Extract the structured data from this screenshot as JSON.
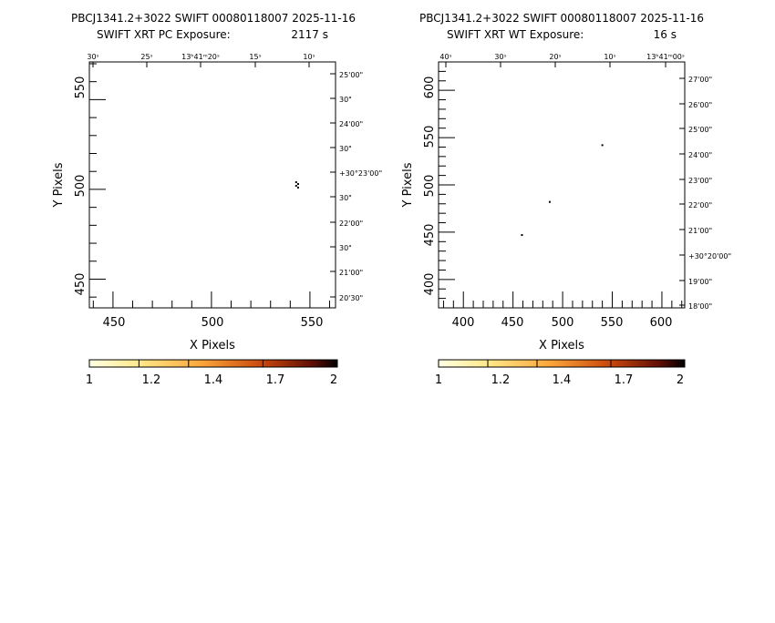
{
  "charts": [
    {
      "title_line1": "PBCJ1341.2+3022 SWIFT 00080118007 2025-11-16",
      "title_line2_prefix": "SWIFT XRT PC Exposure:",
      "title_line2_value": "2117 s",
      "xlabel": "X Pixels",
      "ylabel": "Y Pixels",
      "xticks": [
        "450",
        "500",
        "550"
      ],
      "yticks": [
        "450",
        "500",
        "550"
      ],
      "top_ticks": [
        "30ˢ",
        "25ˢ",
        "13ʰ41ᵐ20ˢ",
        "15ˢ",
        "10ˢ"
      ],
      "right_ticks": [
        "25'00\"",
        "30\"",
        "24'00\"",
        "30\"",
        "+30°23'00\"",
        "30\"",
        "22'00\"",
        "30\"",
        "21'00\"",
        "20'30\""
      ],
      "colorbar_ticks": [
        "1",
        "1.2",
        "1.4",
        "1.7",
        "2"
      ]
    },
    {
      "title_line1": "PBCJ1341.2+3022 SWIFT 00080118007 2025-11-16",
      "title_line2_prefix": "SWIFT XRT WT Exposure:",
      "title_line2_value": "16 s",
      "xlabel": "X Pixels",
      "ylabel": "Y Pixels",
      "xticks": [
        "400",
        "450",
        "500",
        "550",
        "600"
      ],
      "yticks": [
        "400",
        "450",
        "500",
        "550",
        "600"
      ],
      "top_ticks": [
        "40ˢ",
        "30ˢ",
        "20ˢ",
        "10ˢ",
        "13ʰ41ᵐ00ˢ"
      ],
      "right_ticks": [
        "27'00\"",
        "26'00\"",
        "25'00\"",
        "24'00\"",
        "23'00\"",
        "22'00\"",
        "21'00\"",
        "+30°20'00\"",
        "19'00\"",
        "18'00\""
      ],
      "colorbar_ticks": [
        "1",
        "1.2",
        "1.4",
        "1.7",
        "2"
      ]
    }
  ],
  "chart_data": [
    {
      "type": "heatmap",
      "title": "PBCJ1341.2+3022 SWIFT 00080118007 2025-11-16",
      "subtitle": "SWIFT XRT PC Exposure: 2117 s",
      "xlabel": "X Pixels",
      "ylabel": "Y Pixels",
      "xlim": [
        438,
        563
      ],
      "ylim": [
        434,
        571
      ],
      "xticks": [
        450,
        500,
        550
      ],
      "yticks": [
        450,
        500,
        550
      ],
      "colorbar": {
        "range": [
          1,
          2
        ],
        "ticks": [
          1,
          1.2,
          1.4,
          1.7,
          2
        ]
      },
      "points": [
        {
          "x": 543,
          "y": 504,
          "v": 2
        },
        {
          "x": 544,
          "y": 503,
          "v": 2
        },
        {
          "x": 543,
          "y": 502,
          "v": 2
        },
        {
          "x": 544,
          "y": 501,
          "v": 2
        }
      ]
    },
    {
      "type": "heatmap",
      "title": "PBCJ1341.2+3022 SWIFT 00080118007 2025-11-16",
      "subtitle": "SWIFT XRT WT Exposure: 16 s",
      "xlabel": "X Pixels",
      "ylabel": "Y Pixels",
      "xlim": [
        375,
        623
      ],
      "ylim": [
        370,
        630
      ],
      "xticks": [
        400,
        450,
        500,
        550,
        600
      ],
      "yticks": [
        400,
        450,
        500,
        550,
        600
      ],
      "colorbar": {
        "range": [
          1,
          2
        ],
        "ticks": [
          1,
          1.2,
          1.4,
          1.7,
          2
        ]
      },
      "points": [
        {
          "x": 540,
          "y": 542,
          "v": 2
        },
        {
          "x": 487,
          "y": 482,
          "v": 2
        },
        {
          "x": 459,
          "y": 447,
          "v": 2
        }
      ]
    }
  ]
}
